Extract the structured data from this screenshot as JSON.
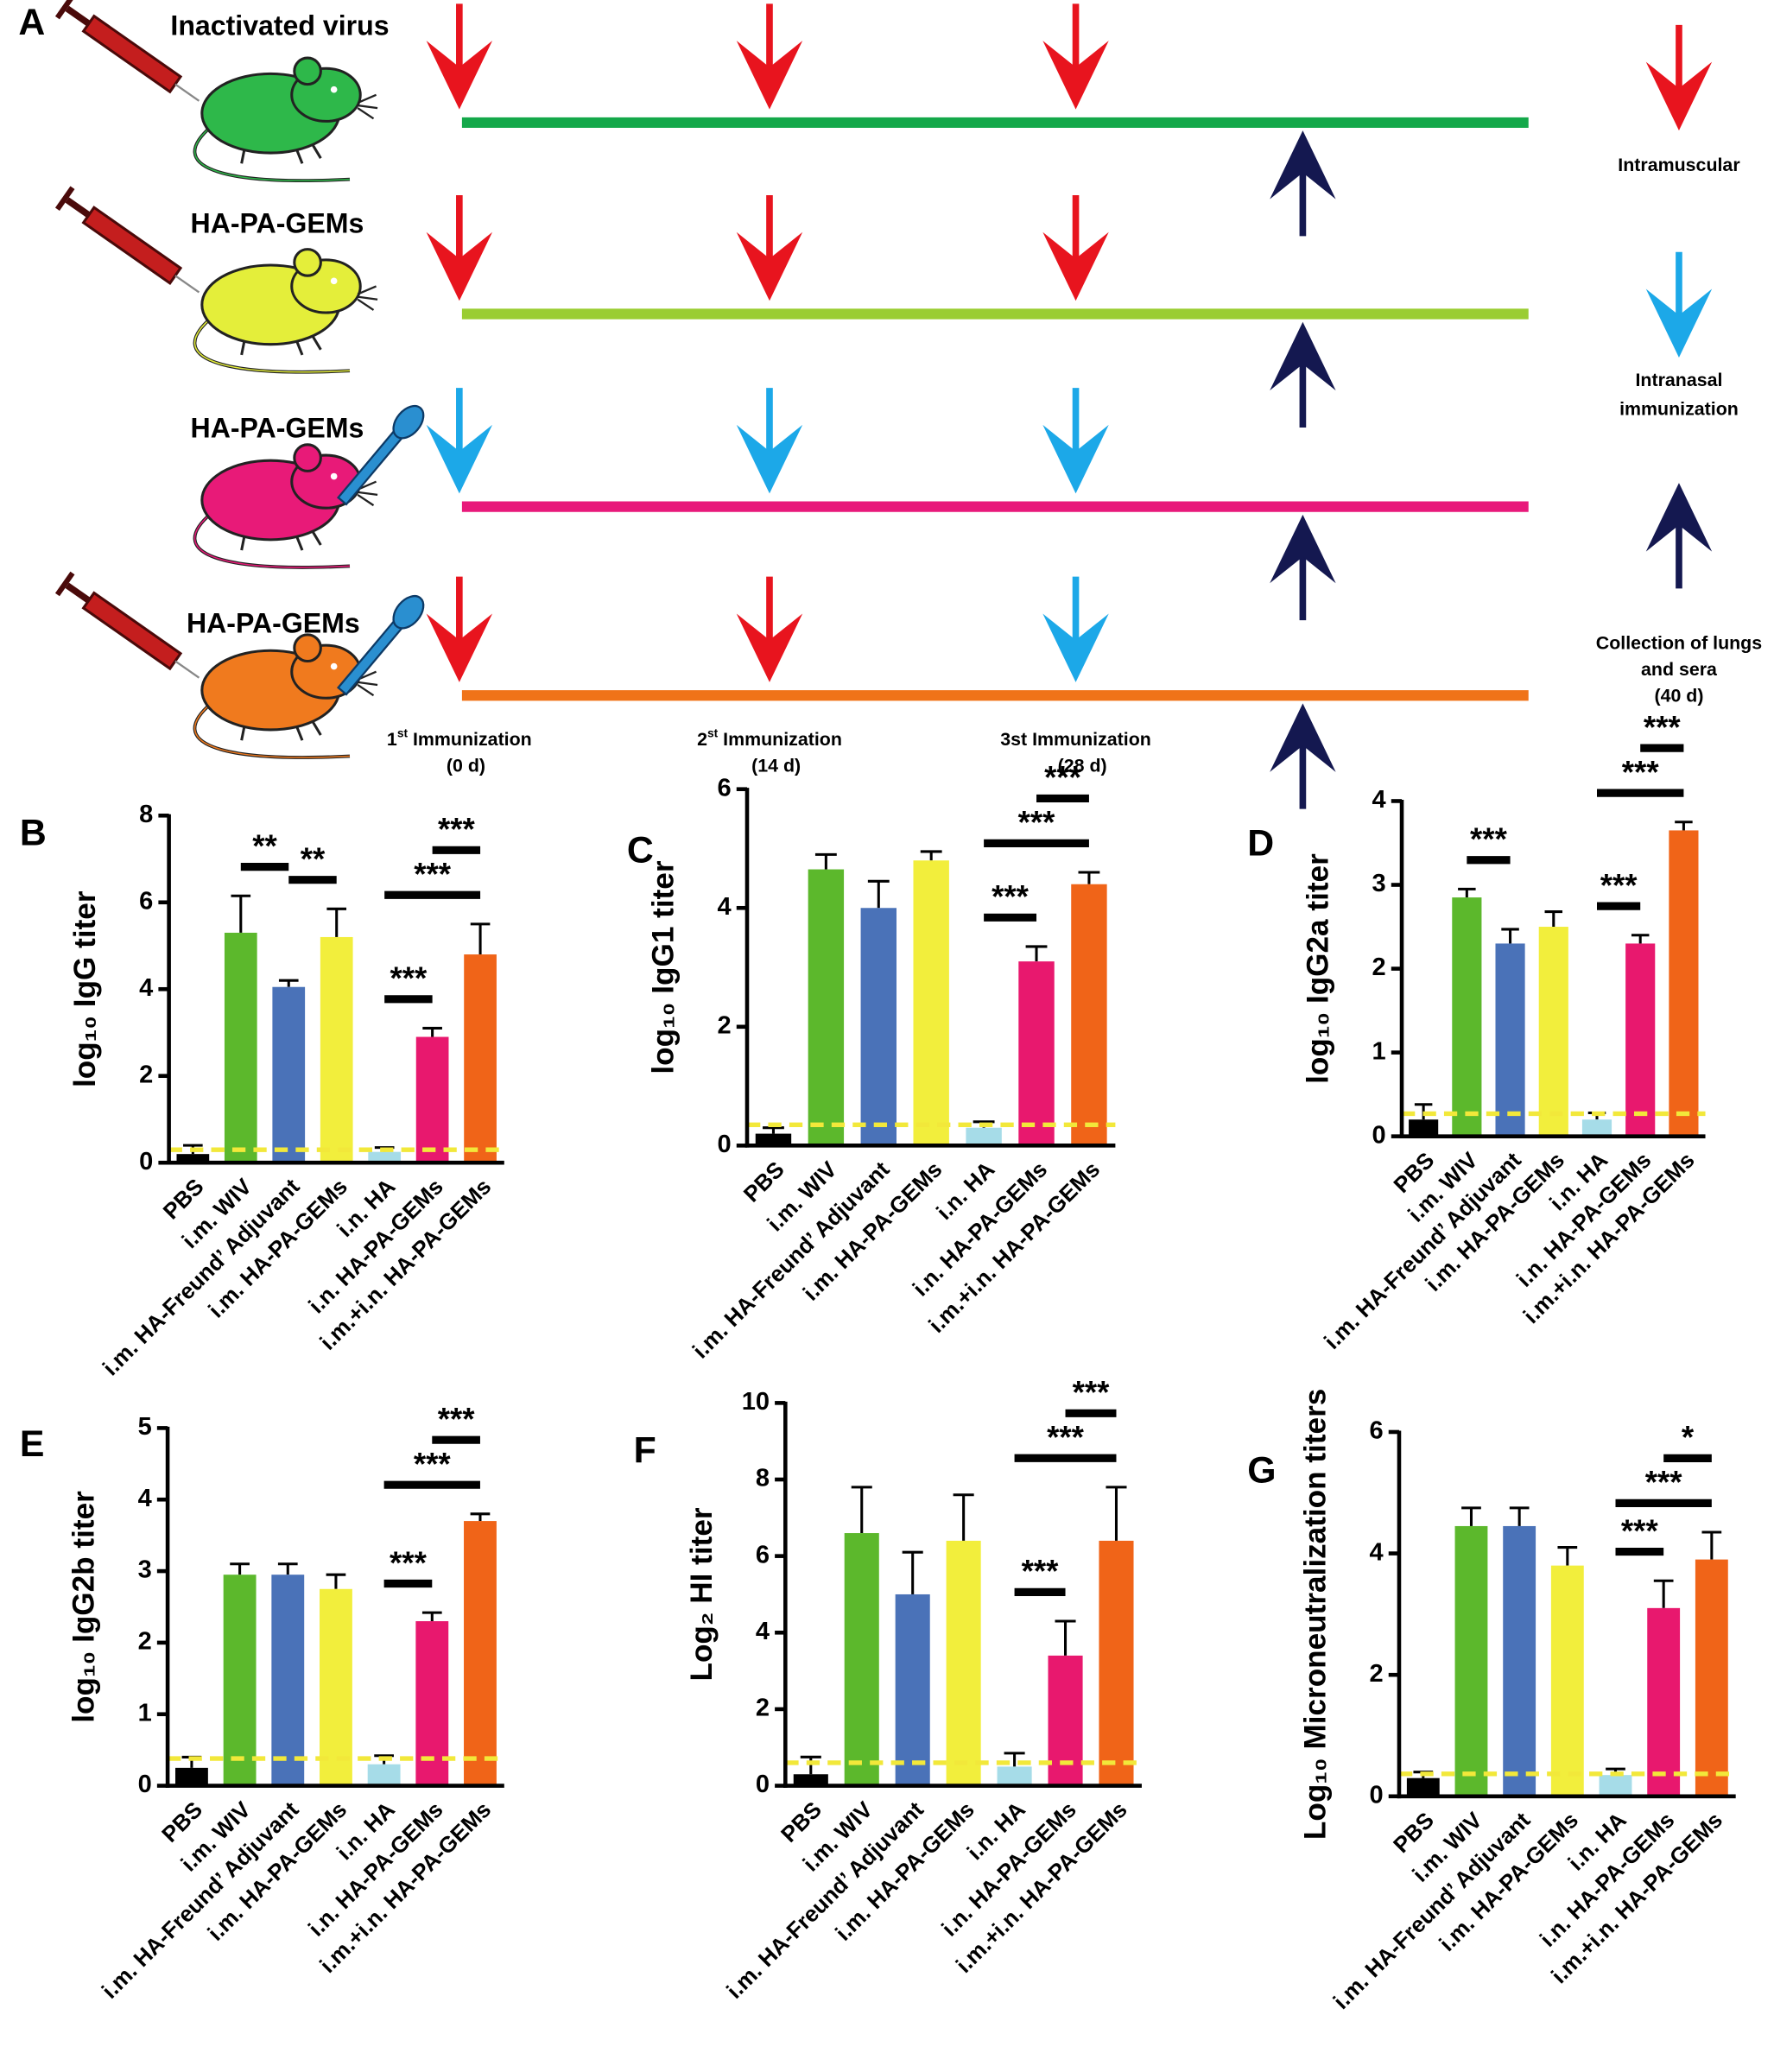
{
  "schematic": {
    "panel": "A",
    "groups": [
      "Inactivated virus",
      "HA-PA-GEMs",
      "HA-PA-GEMs",
      "HA-PA-GEMs"
    ],
    "immunizations": [
      {
        "num": "1",
        "sup": "st",
        "text": " Immunization",
        "days": "(0 d)"
      },
      {
        "num": "2",
        "sup": "st",
        "text": " Immunization",
        "days": "(14 d)"
      },
      {
        "text": "3st Immunization",
        "days": "(28 d)"
      }
    ],
    "legend": [
      [
        "Intramuscular"
      ],
      [
        "Intranasal",
        "immunization"
      ],
      [
        "Collection of lungs",
        "and sera",
        "(40 d)"
      ]
    ]
  },
  "chart_data": [
    {
      "type": "bar",
      "panel": "B",
      "ylabel": "log₁₀ IgG titer",
      "categories": [
        "PBS",
        "i.m. WIV",
        "i.m. HA-Freund’ Adjuvant",
        "i.m. HA-PA-GEMs",
        "i.n. HA",
        "i.n. HA-PA-GEMs",
        "i.m.+i.n. HA-PA-GEMs"
      ],
      "colors": [
        "#000000",
        "#5cb82c",
        "#4a72b8",
        "#f2ee3c",
        "#a6dce8",
        "#e8186e",
        "#f06418"
      ],
      "values": [
        0.2,
        5.3,
        4.05,
        5.2,
        0.25,
        2.9,
        4.8
      ],
      "errors": [
        0.2,
        0.85,
        0.15,
        0.65,
        0.1,
        0.2,
        0.7
      ],
      "threshold": 0.3,
      "threshold_color": "#f2e83a",
      "ylim": [
        0,
        8
      ],
      "yticks": [
        0,
        2,
        4,
        6,
        8
      ],
      "significance": [
        {
          "pair": [
            1,
            2
          ],
          "label": "**"
        },
        {
          "pair": [
            2,
            3
          ],
          "label": "**"
        },
        {
          "pair": [
            4,
            5
          ],
          "label": "***"
        },
        {
          "pair": [
            4,
            6
          ],
          "label": "***"
        },
        {
          "pair": [
            5,
            6
          ],
          "label": "***"
        }
      ]
    },
    {
      "type": "bar",
      "panel": "C",
      "ylabel": "log₁₀ IgG1 titer",
      "categories": [
        "PBS",
        "i.m. WIV",
        "i.m. HA-Freund’ Adjuvant",
        "i.m. HA-PA-GEMs",
        "i.n. HA",
        "i.n. HA-PA-GEMs",
        "i.m.+i.n. HA-PA-GEMs"
      ],
      "colors": [
        "#000000",
        "#5cb82c",
        "#4a72b8",
        "#f2ee3c",
        "#a6dce8",
        "#e8186e",
        "#f06418"
      ],
      "values": [
        0.2,
        4.65,
        4.0,
        4.8,
        0.3,
        3.1,
        4.4
      ],
      "errors": [
        0.1,
        0.25,
        0.45,
        0.15,
        0.1,
        0.25,
        0.2
      ],
      "threshold": 0.35,
      "threshold_color": "#f2e83a",
      "ylim": [
        0,
        6
      ],
      "yticks": [
        0,
        2,
        4,
        6
      ],
      "significance": [
        {
          "pair": [
            4,
            5
          ],
          "label": "***"
        },
        {
          "pair": [
            4,
            6
          ],
          "label": "***"
        },
        {
          "pair": [
            5,
            6
          ],
          "label": "***"
        }
      ]
    },
    {
      "type": "bar",
      "panel": "D",
      "ylabel": "log₁₀ IgG2a titer",
      "categories": [
        "PBS",
        "i.m. WIV",
        "i.m. HA-Freund’ Adjuvant",
        "i.m. HA-PA-GEMs",
        "i.n. HA",
        "i.n. HA-PA-GEMs",
        "i.m.+i.n. HA-PA-GEMs"
      ],
      "colors": [
        "#000000",
        "#5cb82c",
        "#4a72b8",
        "#f2ee3c",
        "#a6dce8",
        "#e8186e",
        "#f06418"
      ],
      "values": [
        0.2,
        2.85,
        2.3,
        2.5,
        0.2,
        2.3,
        3.65
      ],
      "errors": [
        0.18,
        0.1,
        0.17,
        0.18,
        0.08,
        0.1,
        0.1
      ],
      "threshold": 0.27,
      "threshold_color": "#f2e83a",
      "ylim": [
        0,
        4
      ],
      "yticks": [
        0,
        1,
        2,
        3,
        4
      ],
      "significance": [
        {
          "pair": [
            1,
            2
          ],
          "label": "***"
        },
        {
          "pair": [
            4,
            5
          ],
          "label": "***"
        },
        {
          "pair": [
            4,
            6
          ],
          "label": "***"
        },
        {
          "pair": [
            5,
            6
          ],
          "label": "***"
        }
      ]
    },
    {
      "type": "bar",
      "panel": "E",
      "ylabel": "log₁₀ IgG2b titer",
      "categories": [
        "PBS",
        "i.m. WIV",
        "i.m. HA-Freund’ Adjuvant",
        "i.m. HA-PA-GEMs",
        "i.n. HA",
        "i.n. HA-PA-GEMs",
        "i.m.+i.n. HA-PA-GEMs"
      ],
      "colors": [
        "#000000",
        "#5cb82c",
        "#4a72b8",
        "#f2ee3c",
        "#a6dce8",
        "#e8186e",
        "#f06418"
      ],
      "values": [
        0.25,
        2.95,
        2.95,
        2.75,
        0.3,
        2.3,
        3.7
      ],
      "errors": [
        0.15,
        0.15,
        0.15,
        0.2,
        0.12,
        0.12,
        0.1
      ],
      "threshold": 0.38,
      "threshold_color": "#f2e83a",
      "ylim": [
        0,
        5
      ],
      "yticks": [
        0,
        1,
        2,
        3,
        4,
        5
      ],
      "significance": [
        {
          "pair": [
            4,
            5
          ],
          "label": "***"
        },
        {
          "pair": [
            4,
            6
          ],
          "label": "***"
        },
        {
          "pair": [
            5,
            6
          ],
          "label": "***"
        }
      ]
    },
    {
      "type": "bar",
      "panel": "F",
      "ylabel": "Log₂ HI titer",
      "categories": [
        "PBS",
        "i.m. WIV",
        "i.m. HA-Freund’ Adjuvant",
        "i.m. HA-PA-GEMs",
        "i.n. HA",
        "i.n. HA-PA-GEMs",
        "i.m.+i.n. HA-PA-GEMs"
      ],
      "colors": [
        "#000000",
        "#5cb82c",
        "#4a72b8",
        "#f2ee3c",
        "#a6dce8",
        "#e8186e",
        "#f06418"
      ],
      "values": [
        0.3,
        6.6,
        5.0,
        6.4,
        0.5,
        3.4,
        6.4
      ],
      "errors": [
        0.45,
        1.2,
        1.1,
        1.2,
        0.35,
        0.9,
        1.4
      ],
      "threshold": 0.6,
      "threshold_color": "#f2e83a",
      "ylim": [
        0,
        10
      ],
      "yticks": [
        0,
        2,
        4,
        6,
        8,
        10
      ],
      "significance": [
        {
          "pair": [
            4,
            5
          ],
          "label": "***"
        },
        {
          "pair": [
            4,
            6
          ],
          "label": "***"
        },
        {
          "pair": [
            5,
            6
          ],
          "label": "***"
        }
      ]
    },
    {
      "type": "bar",
      "panel": "G",
      "ylabel": "Log₁₀ Microneutralization titers",
      "categories": [
        "PBS",
        "i.m. WIV",
        "i.m. HA-Freund’ Adjuvant",
        "i.m. HA-PA-GEMs",
        "i.n. HA",
        "i.n. HA-PA-GEMs",
        "i.m.+i.n. HA-PA-GEMs"
      ],
      "colors": [
        "#000000",
        "#5cb82c",
        "#4a72b8",
        "#f2ee3c",
        "#a6dce8",
        "#e8186e",
        "#f06418"
      ],
      "values": [
        0.3,
        4.45,
        4.45,
        3.8,
        0.35,
        3.1,
        3.9
      ],
      "errors": [
        0.1,
        0.3,
        0.3,
        0.3,
        0.1,
        0.45,
        0.45
      ],
      "threshold": 0.37,
      "threshold_color": "#f2e83a",
      "ylim": [
        0,
        6
      ],
      "yticks": [
        0,
        2,
        4,
        6
      ],
      "significance": [
        {
          "pair": [
            4,
            5
          ],
          "label": "***"
        },
        {
          "pair": [
            4,
            6
          ],
          "label": "***"
        },
        {
          "pair": [
            5,
            6
          ],
          "label": "*"
        }
      ]
    }
  ]
}
